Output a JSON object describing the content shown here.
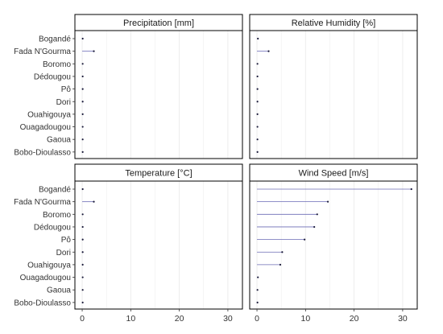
{
  "chart_data": {
    "type": "lollipop",
    "layout": "facet-2x2",
    "categories": [
      "Bogandé",
      "Fada N'Gourma",
      "Boromo",
      "Dédougou",
      "Pô",
      "Dori",
      "Ouahigouya",
      "Ouagadougou",
      "Gaoua",
      "Bobo-Dioulasso"
    ],
    "xlim": [
      -1.5,
      33
    ],
    "xticks": [
      0,
      10,
      20,
      30
    ],
    "grid": true,
    "legend": "none",
    "colors": {
      "segment": "#6b6bb5",
      "point": "#1a1a3a",
      "strip_bg": "#ffffff",
      "strip_border": "#000000",
      "grid": "#ebebeb"
    },
    "panels": [
      {
        "name": "Precipitation [mm]",
        "values": [
          0.1,
          2.4,
          0.1,
          0.1,
          0.1,
          0.1,
          0.1,
          0.1,
          0.1,
          0.1
        ]
      },
      {
        "name": "Relative Humidity [%]",
        "values": [
          0.2,
          2.4,
          0.1,
          0.1,
          0.1,
          0.1,
          0.1,
          0.1,
          0.1,
          0.1
        ]
      },
      {
        "name": "Temperature [°C]",
        "values": [
          0.1,
          2.4,
          0.1,
          0.1,
          0.1,
          0.1,
          0.1,
          0.1,
          0.1,
          0.1
        ]
      },
      {
        "name": "Wind Speed [m/s]",
        "values": [
          31.8,
          14.6,
          12.4,
          11.8,
          9.8,
          5.2,
          4.8,
          0.2,
          0.1,
          0.1
        ]
      }
    ]
  }
}
